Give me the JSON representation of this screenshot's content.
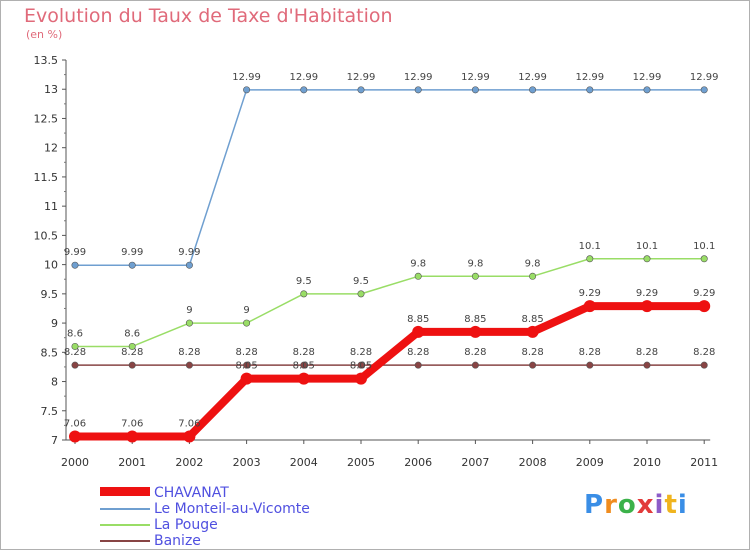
{
  "chart_data": {
    "type": "line",
    "title": "Evolution du Taux de Taxe d'Habitation",
    "subtitle": "(en %)",
    "categories": [
      "2000",
      "2001",
      "2002",
      "2003",
      "2004",
      "2005",
      "2006",
      "2007",
      "2008",
      "2009",
      "2010",
      "2011"
    ],
    "ylim": [
      7,
      13.5
    ],
    "yticks": [
      7,
      7.5,
      8,
      8.5,
      9,
      9.5,
      10,
      10.5,
      11,
      11.5,
      12,
      12.5,
      13,
      13.5
    ],
    "grid": false,
    "legend_position": "bottom-left",
    "series": [
      {
        "name": "CHAVANAT",
        "color": "#ee1111",
        "values": [
          7.06,
          7.06,
          7.06,
          8.05,
          8.05,
          8.05,
          8.85,
          8.85,
          8.85,
          9.29,
          9.29,
          9.29
        ]
      },
      {
        "name": "Le Monteil-au-Vicomte",
        "color": "#6f9fd0",
        "values": [
          9.99,
          9.99,
          9.99,
          12.99,
          12.99,
          12.99,
          12.99,
          12.99,
          12.99,
          12.99,
          12.99,
          12.99
        ]
      },
      {
        "name": "La Pouge",
        "color": "#99dd66",
        "values": [
          8.6,
          8.6,
          9,
          9,
          9.5,
          9.5,
          9.8,
          9.8,
          9.8,
          10.1,
          10.1,
          10.1
        ]
      },
      {
        "name": "Banize",
        "color": "#884444",
        "values": [
          8.28,
          8.28,
          8.28,
          8.28,
          8.28,
          8.28,
          8.28,
          8.28,
          8.28,
          8.28,
          8.28,
          8.28
        ]
      }
    ]
  },
  "logo": {
    "text": "Proxiti",
    "colors": [
      "#3a8ee6",
      "#f08c1e",
      "#3cb24a",
      "#e23b3b",
      "#8c5cc8",
      "#f0b41e",
      "#3a8ee6"
    ]
  }
}
